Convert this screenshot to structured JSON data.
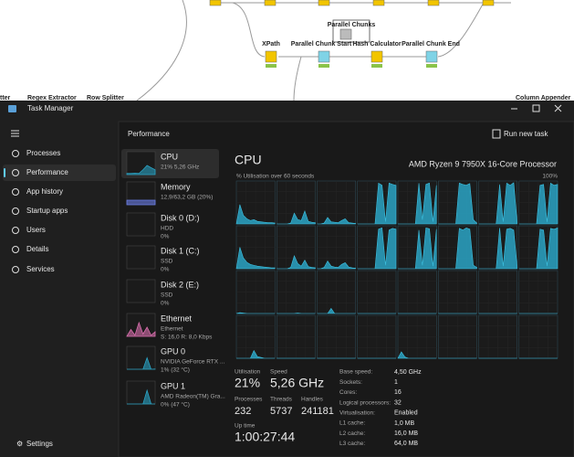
{
  "workflow": {
    "labels": [
      "Parallel Chunks",
      "XPath",
      "Parallel Chunk Start",
      "Hash Calculator",
      "Parallel Chunk End",
      "tter",
      "Regex Extractor",
      "Row Splitter",
      "Column Appender"
    ]
  },
  "window": {
    "title": "Task Manager"
  },
  "nav": {
    "items": [
      "Processes",
      "Performance",
      "App history",
      "Startup apps",
      "Users",
      "Details",
      "Services"
    ],
    "settings": "Settings"
  },
  "header": {
    "title": "Performance",
    "action": "Run new task"
  },
  "devices": [
    {
      "name": "CPU",
      "lines": [
        "21%  5,26 GHz"
      ],
      "graph": [
        5,
        5,
        6,
        5,
        21,
        40,
        30,
        21
      ]
    },
    {
      "name": "Memory",
      "lines": [
        "12,9/63,2 GB (20%)"
      ],
      "graph": [
        20,
        20,
        20,
        20,
        20,
        20,
        20,
        20
      ]
    },
    {
      "name": "Disk 0 (D:)",
      "lines": [
        "HDD",
        "0%"
      ]
    },
    {
      "name": "Disk 1 (C:)",
      "lines": [
        "SSD",
        "0%"
      ]
    },
    {
      "name": "Disk 2 (E:)",
      "lines": [
        "SSD",
        "0%"
      ]
    },
    {
      "name": "Ethernet",
      "lines": [
        "Ethernet",
        "S: 16,0  R: 8,0 Kbps"
      ],
      "graph": [
        0,
        30,
        5,
        60,
        10,
        40,
        5,
        20
      ]
    },
    {
      "name": "GPU 0",
      "lines": [
        "NVIDIA GeForce RTX ...",
        "1%  (32 °C)"
      ],
      "graph": [
        0,
        0,
        0,
        0,
        0,
        50,
        0,
        1
      ]
    },
    {
      "name": "GPU 1",
      "lines": [
        "AMD Radeon(TM) Gra...",
        "0%  (47 °C)"
      ],
      "graph": [
        0,
        0,
        0,
        0,
        0,
        60,
        0,
        0
      ]
    }
  ],
  "detail": {
    "title": "CPU",
    "model": "AMD Ryzen 9 7950X 16-Core Processor",
    "graph_label": "% Utilisation over 60 seconds",
    "graph_max": "100%",
    "ylim": [
      0,
      100
    ],
    "cores": [
      [
        0,
        45,
        20,
        12,
        8,
        10,
        6,
        5,
        4,
        3,
        3,
        2
      ],
      [
        0,
        0,
        0,
        0,
        2,
        25,
        10,
        8,
        30,
        6,
        4,
        3
      ],
      [
        0,
        0,
        2,
        15,
        5,
        4,
        3,
        8,
        12,
        3,
        2,
        1
      ],
      [
        0,
        0,
        0,
        0,
        0,
        0,
        95,
        90,
        5,
        95,
        92,
        90
      ],
      [
        0,
        0,
        0,
        0,
        0,
        0,
        95,
        10,
        92,
        95,
        5,
        90
      ],
      [
        0,
        0,
        0,
        0,
        0,
        0,
        95,
        92,
        90,
        94,
        10,
        2
      ],
      [
        0,
        0,
        0,
        0,
        0,
        0,
        92,
        5,
        95,
        90,
        96,
        4
      ],
      [
        0,
        0,
        0,
        0,
        0,
        0,
        90,
        92,
        4,
        95,
        90,
        92
      ],
      [
        0,
        50,
        25,
        15,
        10,
        8,
        6,
        5,
        4,
        3,
        2,
        2
      ],
      [
        0,
        0,
        0,
        0,
        3,
        30,
        12,
        6,
        20,
        5,
        3,
        2
      ],
      [
        0,
        0,
        3,
        18,
        6,
        4,
        3,
        10,
        14,
        4,
        2,
        1
      ],
      [
        0,
        0,
        0,
        0,
        0,
        0,
        92,
        95,
        8,
        90,
        94,
        92
      ],
      [
        0,
        0,
        0,
        0,
        0,
        0,
        90,
        8,
        95,
        93,
        6,
        92
      ],
      [
        0,
        0,
        0,
        0,
        0,
        0,
        94,
        90,
        95,
        92,
        8,
        3
      ],
      [
        0,
        0,
        0,
        0,
        0,
        0,
        95,
        6,
        92,
        94,
        90,
        5
      ],
      [
        0,
        0,
        0,
        0,
        0,
        0,
        92,
        90,
        6,
        94,
        92,
        95
      ],
      [
        0,
        2,
        1,
        0,
        0,
        0,
        0,
        0,
        0,
        0,
        0,
        0
      ],
      [
        0,
        0,
        0,
        0,
        0,
        0,
        1,
        0,
        0,
        0,
        0,
        0
      ],
      [
        0,
        0,
        0,
        0,
        12,
        0,
        0,
        0,
        0,
        0,
        0,
        0
      ],
      [
        0,
        0,
        0,
        0,
        0,
        0,
        0,
        0,
        0,
        0,
        0,
        0
      ],
      [
        0,
        0,
        0,
        0,
        0,
        0,
        0,
        0,
        0,
        0,
        0,
        0
      ],
      [
        0,
        0,
        0,
        0,
        0,
        0,
        0,
        0,
        0,
        0,
        0,
        0
      ],
      [
        0,
        0,
        0,
        0,
        0,
        0,
        0,
        0,
        0,
        0,
        0,
        0
      ],
      [
        0,
        0,
        0,
        0,
        0,
        0,
        0,
        0,
        0,
        0,
        0,
        0
      ],
      [
        0,
        0,
        0,
        0,
        0,
        18,
        4,
        2,
        0,
        0,
        0,
        0
      ],
      [
        0,
        0,
        0,
        0,
        0,
        0,
        0,
        0,
        0,
        0,
        0,
        0
      ],
      [
        0,
        0,
        0,
        0,
        0,
        0,
        0,
        0,
        0,
        0,
        0,
        0
      ],
      [
        0,
        0,
        0,
        0,
        0,
        0,
        0,
        0,
        0,
        0,
        0,
        0
      ],
      [
        0,
        15,
        3,
        0,
        0,
        0,
        0,
        0,
        0,
        0,
        0,
        0
      ],
      [
        0,
        0,
        0,
        0,
        0,
        0,
        0,
        0,
        0,
        0,
        0,
        0
      ],
      [
        0,
        0,
        0,
        0,
        0,
        0,
        0,
        0,
        0,
        0,
        0,
        0
      ],
      [
        0,
        0,
        0,
        0,
        0,
        0,
        0,
        0,
        0,
        0,
        0,
        0
      ]
    ],
    "stats": [
      {
        "label": "Utilisation",
        "value": "21%"
      },
      {
        "label": "Speed",
        "value": "5,26 GHz"
      },
      {
        "label": "Processes",
        "value": "232"
      },
      {
        "label": "Threads",
        "value": "5737"
      },
      {
        "label": "Handles",
        "value": "241181"
      },
      {
        "label": "Up time",
        "value": "1:00:27:44"
      }
    ],
    "specs": [
      {
        "label": "Base speed:",
        "value": "4,50 GHz"
      },
      {
        "label": "Sockets:",
        "value": "1"
      },
      {
        "label": "Cores:",
        "value": "16"
      },
      {
        "label": "Logical processors:",
        "value": "32"
      },
      {
        "label": "Virtualisation:",
        "value": "Enabled"
      },
      {
        "label": "L1 cache:",
        "value": "1,0 MB"
      },
      {
        "label": "L2 cache:",
        "value": "16,0 MB"
      },
      {
        "label": "L3 cache:",
        "value": "64,0 MB"
      }
    ]
  }
}
